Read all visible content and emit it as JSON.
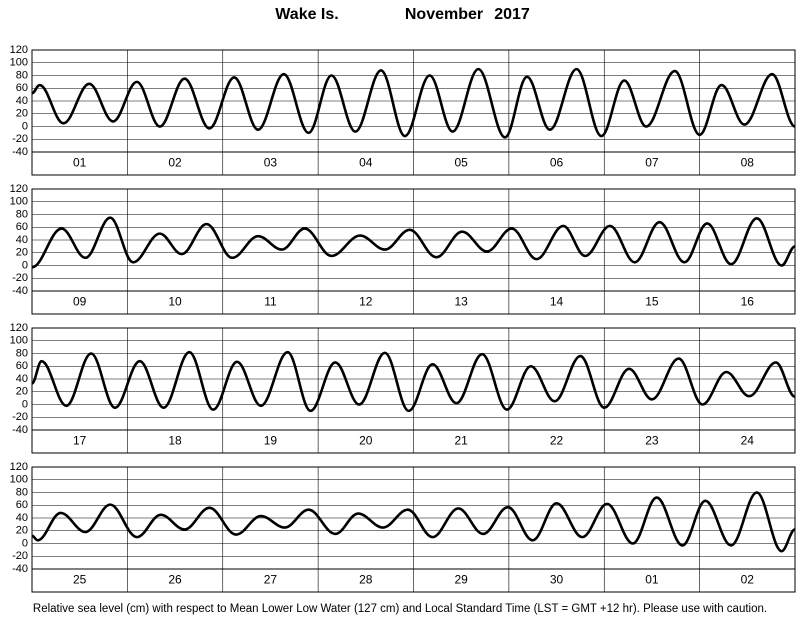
{
  "header": {
    "place": "Wake Is.",
    "month": "November",
    "year": "2017"
  },
  "footer": "Relative sea level (cm) with respect to Mean Lower Low Water (127 cm) and Local Standard Time (LST = GMT +12 hr). Please use with caution.",
  "chart_data": [
    {
      "type": "line",
      "color": "#000000",
      "categories": [
        "01",
        "02",
        "03",
        "04",
        "05",
        "06",
        "07",
        "08"
      ],
      "xlim": [
        0,
        8
      ],
      "ylim": [
        -40,
        120
      ],
      "yticks": [
        -40,
        -20,
        0,
        20,
        40,
        60,
        80,
        100,
        120
      ],
      "grid": true,
      "x": [
        0,
        0.08,
        0.33,
        0.6,
        0.85,
        1.1,
        1.34,
        1.6,
        1.86,
        2.12,
        2.37,
        2.64,
        2.9,
        3.14,
        3.39,
        3.66,
        3.91,
        4.17,
        4.41,
        4.68,
        4.96,
        5.19,
        5.43,
        5.71,
        5.97,
        6.21,
        6.44,
        6.74,
        7.0,
        7.23,
        7.47,
        7.76,
        8.0
      ],
      "values": [
        52,
        65,
        5,
        67,
        8,
        70,
        0,
        75,
        -3,
        77,
        -5,
        82,
        -10,
        80,
        -8,
        88,
        -15,
        80,
        -8,
        90,
        -17,
        78,
        -5,
        90,
        -15,
        72,
        0,
        87,
        -13,
        65,
        3,
        82,
        0
      ]
    },
    {
      "type": "line",
      "color": "#000000",
      "categories": [
        "09",
        "10",
        "11",
        "12",
        "13",
        "14",
        "15",
        "16"
      ],
      "xlim": [
        0,
        8
      ],
      "ylim": [
        -40,
        120
      ],
      "yticks": [
        -40,
        -20,
        0,
        20,
        40,
        60,
        80,
        100,
        120
      ],
      "grid": true,
      "x": [
        0,
        0.31,
        0.56,
        0.82,
        1.06,
        1.34,
        1.57,
        1.83,
        2.1,
        2.37,
        2.62,
        2.86,
        3.14,
        3.44,
        3.7,
        3.96,
        4.24,
        4.51,
        4.77,
        5.03,
        5.29,
        5.57,
        5.8,
        6.06,
        6.32,
        6.58,
        6.84,
        7.08,
        7.33,
        7.6,
        7.86,
        8.0
      ],
      "values": [
        -3,
        58,
        12,
        75,
        5,
        50,
        18,
        65,
        12,
        46,
        25,
        58,
        15,
        47,
        25,
        56,
        13,
        53,
        22,
        58,
        10,
        62,
        15,
        62,
        5,
        68,
        5,
        66,
        2,
        74,
        0,
        30
      ]
    },
    {
      "type": "line",
      "color": "#000000",
      "categories": [
        "17",
        "18",
        "19",
        "20",
        "21",
        "22",
        "23",
        "24"
      ],
      "xlim": [
        0,
        8
      ],
      "ylim": [
        -40,
        120
      ],
      "yticks": [
        -40,
        -20,
        0,
        20,
        40,
        60,
        80,
        100,
        120
      ],
      "grid": true,
      "x": [
        0,
        0.1,
        0.36,
        0.62,
        0.87,
        1.13,
        1.38,
        1.65,
        1.9,
        2.15,
        2.4,
        2.68,
        2.92,
        3.18,
        3.43,
        3.7,
        3.95,
        4.2,
        4.45,
        4.72,
        4.98,
        5.23,
        5.48,
        5.75,
        6.0,
        6.26,
        6.5,
        6.78,
        7.03,
        7.28,
        7.52,
        7.8,
        8.0
      ],
      "values": [
        33,
        68,
        -2,
        80,
        -5,
        68,
        -5,
        82,
        -8,
        67,
        -2,
        82,
        -10,
        66,
        0,
        81,
        -10,
        63,
        2,
        79,
        -8,
        60,
        5,
        76,
        -5,
        56,
        8,
        72,
        0,
        51,
        13,
        66,
        12
      ]
    },
    {
      "type": "line",
      "color": "#000000",
      "categories": [
        "25",
        "26",
        "27",
        "28",
        "29",
        "30",
        "01",
        "02"
      ],
      "xlim": [
        0,
        8
      ],
      "ylim": [
        -40,
        120
      ],
      "yticks": [
        -40,
        -20,
        0,
        20,
        40,
        60,
        80,
        100,
        120
      ],
      "grid": true,
      "x": [
        0,
        0.06,
        0.3,
        0.56,
        0.82,
        1.1,
        1.35,
        1.6,
        1.86,
        2.14,
        2.4,
        2.65,
        2.9,
        3.18,
        3.42,
        3.68,
        3.94,
        4.2,
        4.47,
        4.73,
        4.99,
        5.25,
        5.5,
        5.77,
        6.03,
        6.3,
        6.55,
        6.82,
        7.06,
        7.33,
        7.6,
        7.86,
        8.0
      ],
      "values": [
        12,
        5,
        48,
        18,
        61,
        10,
        45,
        22,
        56,
        14,
        43,
        25,
        53,
        15,
        47,
        25,
        53,
        10,
        55,
        15,
        57,
        5,
        63,
        10,
        62,
        0,
        72,
        -3,
        67,
        -3,
        80,
        -12,
        22
      ]
    }
  ]
}
